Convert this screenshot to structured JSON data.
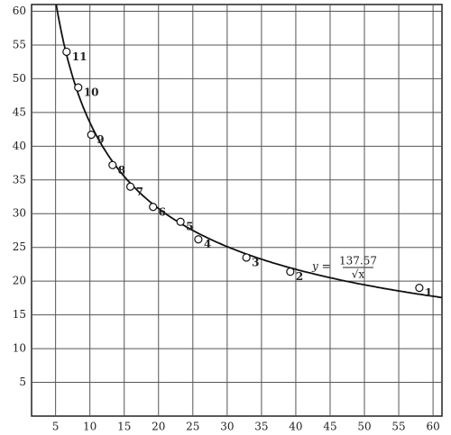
{
  "chart_data": {
    "type": "scatter",
    "x": [
      58,
      39.2,
      32.8,
      25.8,
      23.2,
      19.2,
      15.9,
      13.3,
      10.2,
      8.3,
      6.6
    ],
    "values": [
      19,
      21.4,
      23.5,
      26.2,
      28.8,
      31,
      34,
      37.2,
      41.7,
      48.7,
      54
    ],
    "labels": [
      "1",
      "2",
      "3",
      "4",
      "5",
      "6",
      "7",
      "8",
      "9",
      "10",
      "11"
    ],
    "curve": {
      "coefficient": 137.57,
      "prefix": "y =",
      "denominator": "√x"
    },
    "xlim": [
      1.5,
      61.3
    ],
    "ylim": [
      0,
      61
    ],
    "xticks": [
      5,
      10,
      15,
      20,
      25,
      30,
      35,
      40,
      45,
      50,
      55,
      60
    ],
    "yticks": [
      5,
      10,
      15,
      20,
      25,
      30,
      35,
      40,
      45,
      50,
      55,
      60
    ],
    "grid": true,
    "color": "#111111"
  }
}
